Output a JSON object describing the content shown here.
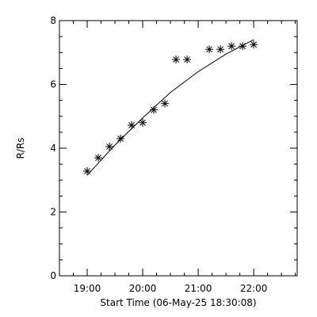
{
  "chart_data": {
    "type": "scatter",
    "xlabel": "Start Time (06-May-25 18:30:08)",
    "ylabel": "R/Rs",
    "xlim": [
      "18:30",
      "22:47"
    ],
    "ylim": [
      0,
      8
    ],
    "x_ticks": [
      "19:00",
      "20:00",
      "21:00",
      "22:00"
    ],
    "y_ticks": [
      0,
      2,
      4,
      6,
      8
    ],
    "marker": "asterisk",
    "series": [
      {
        "points": [
          {
            "x": "19:00",
            "y": 3.28
          },
          {
            "x": "19:12",
            "y": 3.7
          },
          {
            "x": "19:24",
            "y": 4.05
          },
          {
            "x": "19:36",
            "y": 4.3
          },
          {
            "x": "19:48",
            "y": 4.72
          },
          {
            "x": "20:00",
            "y": 4.8
          },
          {
            "x": "20:12",
            "y": 5.2
          },
          {
            "x": "20:24",
            "y": 5.4
          },
          {
            "x": "20:36",
            "y": 6.78
          },
          {
            "x": "20:48",
            "y": 6.78
          },
          {
            "x": "21:12",
            "y": 7.1
          },
          {
            "x": "21:24",
            "y": 7.1
          },
          {
            "x": "21:36",
            "y": 7.2
          },
          {
            "x": "21:48",
            "y": 7.2
          },
          {
            "x": "22:00",
            "y": 7.25
          }
        ]
      }
    ],
    "fit": {
      "type": "quadratic",
      "points": [
        {
          "x": "19:00",
          "y": 3.15
        },
        {
          "x": "19:30",
          "y": 4.1
        },
        {
          "x": "20:00",
          "y": 4.95
        },
        {
          "x": "20:30",
          "y": 5.75
        },
        {
          "x": "21:00",
          "y": 6.4
        },
        {
          "x": "21:30",
          "y": 6.95
        },
        {
          "x": "22:00",
          "y": 7.4
        }
      ]
    },
    "grid": false,
    "colors": {
      "axes": "#000000",
      "markers": "#000000",
      "fit": "#000000",
      "background": "#ffffff"
    }
  }
}
